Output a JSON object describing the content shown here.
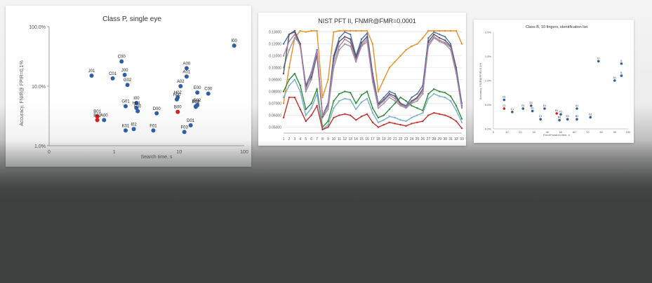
{
  "chart_data": [
    {
      "type": "scatter",
      "title": "Class P, single eye",
      "xlabel": "Search time, s",
      "ylabel": "Accuracy, FNIR@ FPIR=0.1%",
      "xscale": "log",
      "yscale": "log",
      "xlim": [
        0.1,
        100
      ],
      "ylim": [
        1.0,
        100.0
      ],
      "xticks": [
        "0",
        "1",
        "10",
        "100"
      ],
      "yticks": [
        "1.0%",
        "10.0%",
        "100.0%"
      ],
      "points": [
        {
          "label": "J01",
          "x": 0.45,
          "y": 15.0,
          "color": "#2e5fa6"
        },
        {
          "label": "C00",
          "x": 1.3,
          "y": 26.0,
          "color": "#2e5fa6"
        },
        {
          "label": "C01",
          "x": 0.95,
          "y": 13.5,
          "color": "#2e5fa6"
        },
        {
          "label": "J00",
          "x": 1.45,
          "y": 15.5,
          "color": "#2e5fa6"
        },
        {
          "label": "G02",
          "x": 1.6,
          "y": 10.5,
          "color": "#2e5fa6"
        },
        {
          "label": "I00",
          "x": 70,
          "y": 48.0,
          "color": "#2e5fa6"
        },
        {
          "label": "A00",
          "x": 13,
          "y": 20.0,
          "color": "#2e5fa6"
        },
        {
          "label": "A01",
          "x": 13,
          "y": 14.5,
          "color": "#2e5fa6"
        },
        {
          "label": "A02",
          "x": 10.5,
          "y": 10.0,
          "color": "#2e5fa6"
        },
        {
          "label": "H02",
          "x": 9.5,
          "y": 6.5,
          "color": "#2e5fa6"
        },
        {
          "label": "H00",
          "x": 9.2,
          "y": 6.0,
          "color": "#2e5fa6"
        },
        {
          "label": "E00",
          "x": 19,
          "y": 7.8,
          "color": "#2e5fa6"
        },
        {
          "label": "C00",
          "x": 28,
          "y": 7.5,
          "color": "#2e5fa6"
        },
        {
          "label": "E02",
          "x": 19,
          "y": 4.8,
          "color": "#2e5fa6"
        },
        {
          "label": "E02",
          "x": 18,
          "y": 4.6,
          "color": "#2e5fa6"
        },
        {
          "label": "F02",
          "x": 18,
          "y": 4.5,
          "color": "#2e5fa6"
        },
        {
          "label": "G01",
          "x": 1.5,
          "y": 4.6,
          "color": "#2e5fa6"
        },
        {
          "label": "I00",
          "x": 2.2,
          "y": 5.2,
          "color": "#2e5fa6"
        },
        {
          "label": "H01",
          "x": 2.2,
          "y": 4.3,
          "color": "#2e5fa6"
        },
        {
          "label": "F00",
          "x": 2.3,
          "y": 3.8,
          "color": "#2e5fa6"
        },
        {
          "label": "D00",
          "x": 4.5,
          "y": 3.5,
          "color": "#2e5fa6"
        },
        {
          "label": "B00",
          "x": 9.5,
          "y": 3.7,
          "color": "#d62020"
        },
        {
          "label": "B01",
          "x": 0.55,
          "y": 3.1,
          "color": "#d62020"
        },
        {
          "label": "B02",
          "x": 0.55,
          "y": 2.7,
          "color": "#d62020"
        },
        {
          "label": "A00",
          "x": 0.7,
          "y": 2.7,
          "color": "#2e5fa6"
        },
        {
          "label": "I02",
          "x": 2.0,
          "y": 1.9,
          "color": "#2e5fa6"
        },
        {
          "label": "K01",
          "x": 1.5,
          "y": 1.8,
          "color": "#2e5fa6"
        },
        {
          "label": "F01",
          "x": 4.0,
          "y": 1.8,
          "color": "#2e5fa6"
        },
        {
          "label": "F03",
          "x": 12,
          "y": 1.7,
          "color": "#2e5fa6"
        },
        {
          "label": "D01",
          "x": 15,
          "y": 2.2,
          "color": "#2e5fa6"
        }
      ]
    },
    {
      "type": "line",
      "title": "NIST PFT II, FNMR@FMR=0.0001",
      "x": [
        "1",
        "2",
        "3",
        "4",
        "5",
        "6",
        "7",
        "8",
        "9",
        "10",
        "11",
        "12",
        "13",
        "14",
        "15",
        "16",
        "17",
        "18",
        "19",
        "20",
        "21",
        "22",
        "23",
        "24",
        "25",
        "26",
        "27",
        "28",
        "29",
        "30",
        "31",
        "32",
        "33"
      ],
      "ylim": [
        0.045,
        0.131
      ],
      "yticks": [
        "0.05000",
        "0.06000",
        "0.07000",
        "0.08000",
        "0.09000",
        "0.10000",
        "0.11000",
        "0.12000",
        "0.13000"
      ],
      "series": [
        {
          "color": "#4a6fa8",
          "values": [
            0.12,
            0.128,
            0.13,
            0.118,
            0.085,
            0.096,
            0.115,
            0.06,
            0.07,
            0.11,
            0.125,
            0.13,
            0.128,
            0.11,
            0.124,
            0.129,
            0.095,
            0.07,
            0.075,
            0.08,
            0.078,
            0.07,
            0.068,
            0.075,
            0.078,
            0.085,
            0.125,
            0.13,
            0.128,
            0.126,
            0.12,
            0.1,
            0.07
          ]
        },
        {
          "color": "#e8902a",
          "values": [
            0.07,
            0.1,
            0.125,
            0.131,
            0.13,
            0.131,
            0.131,
            0.075,
            0.09,
            0.13,
            0.131,
            0.131,
            0.131,
            0.131,
            0.131,
            0.131,
            0.12,
            0.08,
            0.09,
            0.1,
            0.105,
            0.11,
            0.115,
            0.118,
            0.12,
            0.125,
            0.131,
            0.131,
            0.131,
            0.131,
            0.131,
            0.131,
            0.12
          ]
        },
        {
          "color": "#9a9a9a",
          "values": [
            0.1,
            0.115,
            0.125,
            0.12,
            0.08,
            0.09,
            0.11,
            0.058,
            0.065,
            0.1,
            0.115,
            0.12,
            0.118,
            0.105,
            0.118,
            0.122,
            0.088,
            0.066,
            0.07,
            0.075,
            0.072,
            0.068,
            0.066,
            0.07,
            0.072,
            0.078,
            0.118,
            0.125,
            0.122,
            0.12,
            0.115,
            0.095,
            0.066
          ]
        },
        {
          "color": "#555555",
          "values": [
            0.095,
            0.128,
            0.131,
            0.12,
            0.084,
            0.092,
            0.112,
            0.059,
            0.068,
            0.108,
            0.122,
            0.126,
            0.124,
            0.108,
            0.121,
            0.126,
            0.092,
            0.069,
            0.073,
            0.078,
            0.076,
            0.07,
            0.067,
            0.072,
            0.075,
            0.082,
            0.122,
            0.128,
            0.125,
            0.123,
            0.118,
            0.098,
            0.068
          ]
        },
        {
          "color": "#2f8a3a",
          "values": [
            0.08,
            0.09,
            0.095,
            0.085,
            0.065,
            0.07,
            0.082,
            0.05,
            0.055,
            0.072,
            0.078,
            0.08,
            0.079,
            0.07,
            0.077,
            0.08,
            0.066,
            0.058,
            0.06,
            0.065,
            0.07,
            0.075,
            0.072,
            0.068,
            0.066,
            0.064,
            0.078,
            0.082,
            0.08,
            0.079,
            0.076,
            0.068,
            0.057
          ]
        },
        {
          "color": "#7ab0c8",
          "values": [
            0.075,
            0.085,
            0.09,
            0.08,
            0.06,
            0.066,
            0.078,
            0.048,
            0.052,
            0.066,
            0.072,
            0.074,
            0.073,
            0.065,
            0.071,
            0.074,
            0.062,
            0.054,
            0.056,
            0.059,
            0.058,
            0.056,
            0.055,
            0.058,
            0.06,
            0.062,
            0.074,
            0.078,
            0.076,
            0.075,
            0.072,
            0.064,
            0.054
          ]
        },
        {
          "color": "#c0302a",
          "values": [
            0.058,
            0.075,
            0.075,
            0.065,
            0.055,
            0.06,
            0.068,
            0.048,
            0.05,
            0.058,
            0.06,
            0.061,
            0.06,
            0.056,
            0.059,
            0.061,
            0.054,
            0.05,
            0.052,
            0.054,
            0.053,
            0.052,
            0.051,
            0.053,
            0.054,
            0.055,
            0.06,
            0.062,
            0.061,
            0.06,
            0.058,
            0.055,
            0.049
          ]
        },
        {
          "color": "#b07fb0",
          "values": [
            0.11,
            0.122,
            0.128,
            0.118,
            0.082,
            0.094,
            0.114,
            0.06,
            0.068,
            0.104,
            0.118,
            0.124,
            0.121,
            0.106,
            0.119,
            0.124,
            0.09,
            0.068,
            0.072,
            0.077,
            0.074,
            0.069,
            0.067,
            0.071,
            0.074,
            0.08,
            0.12,
            0.126,
            0.123,
            0.121,
            0.117,
            0.096,
            0.067
          ]
        }
      ]
    },
    {
      "type": "scatter",
      "title": "Class B, 10 fingers, identification list",
      "xlabel": "Enroll+search time, s",
      "ylabel": "Accuracy, FNIR@FPIR=0.1%",
      "xlim": [
        0,
        100
      ],
      "ylim": [
        0.0,
        2.0
      ],
      "xticks": [
        "0",
        "10",
        "20",
        "30",
        "40",
        "50",
        "60",
        "70",
        "80",
        "90",
        "100"
      ],
      "yticks": [
        "0.0%",
        "0.5%",
        "1.0%",
        "1.5%",
        "2.0%"
      ],
      "points": [
        {
          "label": "G1",
          "x": 8,
          "y": 0.6,
          "color": "#2e5fa6"
        },
        {
          "label": "C1",
          "x": 8,
          "y": 0.42,
          "color": "#d62020"
        },
        {
          "label": "C1",
          "x": 14,
          "y": 0.35,
          "color": "#2e5fa6"
        },
        {
          "label": "G1",
          "x": 22,
          "y": 0.42,
          "color": "#2e5fa6"
        },
        {
          "label": "D1",
          "x": 28,
          "y": 0.48,
          "color": "#2e5fa6"
        },
        {
          "label": "E1",
          "x": 29,
          "y": 0.37,
          "color": "#2e5fa6"
        },
        {
          "label": "C1",
          "x": 35,
          "y": 0.2,
          "color": "#2e5fa6"
        },
        {
          "label": "D1",
          "x": 38,
          "y": 0.42,
          "color": "#2e5fa6"
        },
        {
          "label": "B1",
          "x": 47,
          "y": 0.32,
          "color": "#d62020"
        },
        {
          "label": "F1",
          "x": 50,
          "y": 0.3,
          "color": "#2e5fa6"
        },
        {
          "label": "B2",
          "x": 49,
          "y": 0.18,
          "color": "#2e5fa6"
        },
        {
          "label": "E2",
          "x": 55,
          "y": 0.2,
          "color": "#2e5fa6"
        },
        {
          "label": "B1",
          "x": 62,
          "y": 0.2,
          "color": "#2e5fa6"
        },
        {
          "label": "A1",
          "x": 62,
          "y": 0.42,
          "color": "#2e5fa6"
        },
        {
          "label": "D1",
          "x": 72,
          "y": 0.24,
          "color": "#2e5fa6"
        },
        {
          "label": "I1",
          "x": 78,
          "y": 1.4,
          "color": "#2e5fa6"
        },
        {
          "label": "A1",
          "x": 90,
          "y": 1.0,
          "color": "#2e5fa6"
        },
        {
          "label": "I1",
          "x": 95,
          "y": 1.35,
          "color": "#2e5fa6"
        },
        {
          "label": "I1",
          "x": 95,
          "y": 1.1,
          "color": "#2e5fa6"
        }
      ]
    }
  ]
}
